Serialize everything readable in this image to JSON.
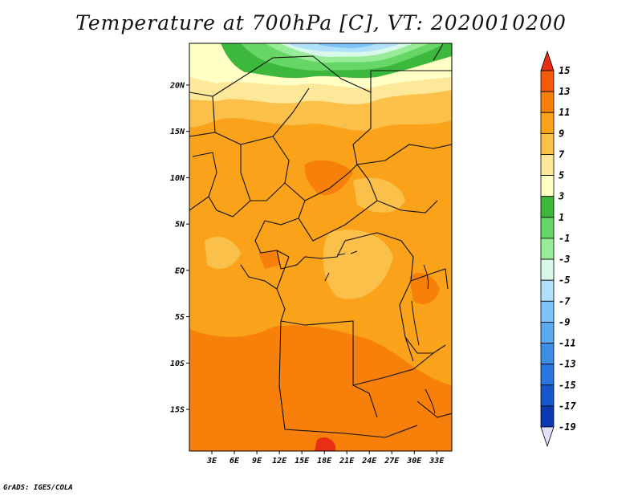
{
  "title": "Temperature at 700hPa [C], VT: 2020010200",
  "credit": "GrADS: IGES/COLA",
  "map": {
    "lon_range": [
      0,
      35
    ],
    "lat_range": [
      -19.5,
      24.5
    ],
    "lon_ticks": [
      "3E",
      "6E",
      "9E",
      "12E",
      "15E",
      "18E",
      "21E",
      "24E",
      "27E",
      "30E",
      "33E"
    ],
    "lat_ticks": [
      "20N",
      "15N",
      "10N",
      "5N",
      "EQ",
      "5S",
      "10S",
      "15S"
    ]
  },
  "colorbar": {
    "labels": [
      "15",
      "13",
      "11",
      "9",
      "7",
      "5",
      "3",
      "1",
      "-1",
      "-3",
      "-5",
      "-7",
      "-9",
      "-11",
      "-13",
      "-15",
      "-17",
      "-19"
    ],
    "colors": [
      "#e82e14",
      "#f55a0a",
      "#f7800a",
      "#f9a21a",
      "#fbc04a",
      "#fde89a",
      "#ffffc6",
      "#3cb83c",
      "#66d666",
      "#98ec98",
      "#d8f8ea",
      "#b0e0fc",
      "#7cc4f7",
      "#5aaaf0",
      "#3c8fe6",
      "#2676de",
      "#1856cc",
      "#0c38b4",
      "#05147a"
    ],
    "range_top": 15,
    "range_bottom": -19
  }
}
